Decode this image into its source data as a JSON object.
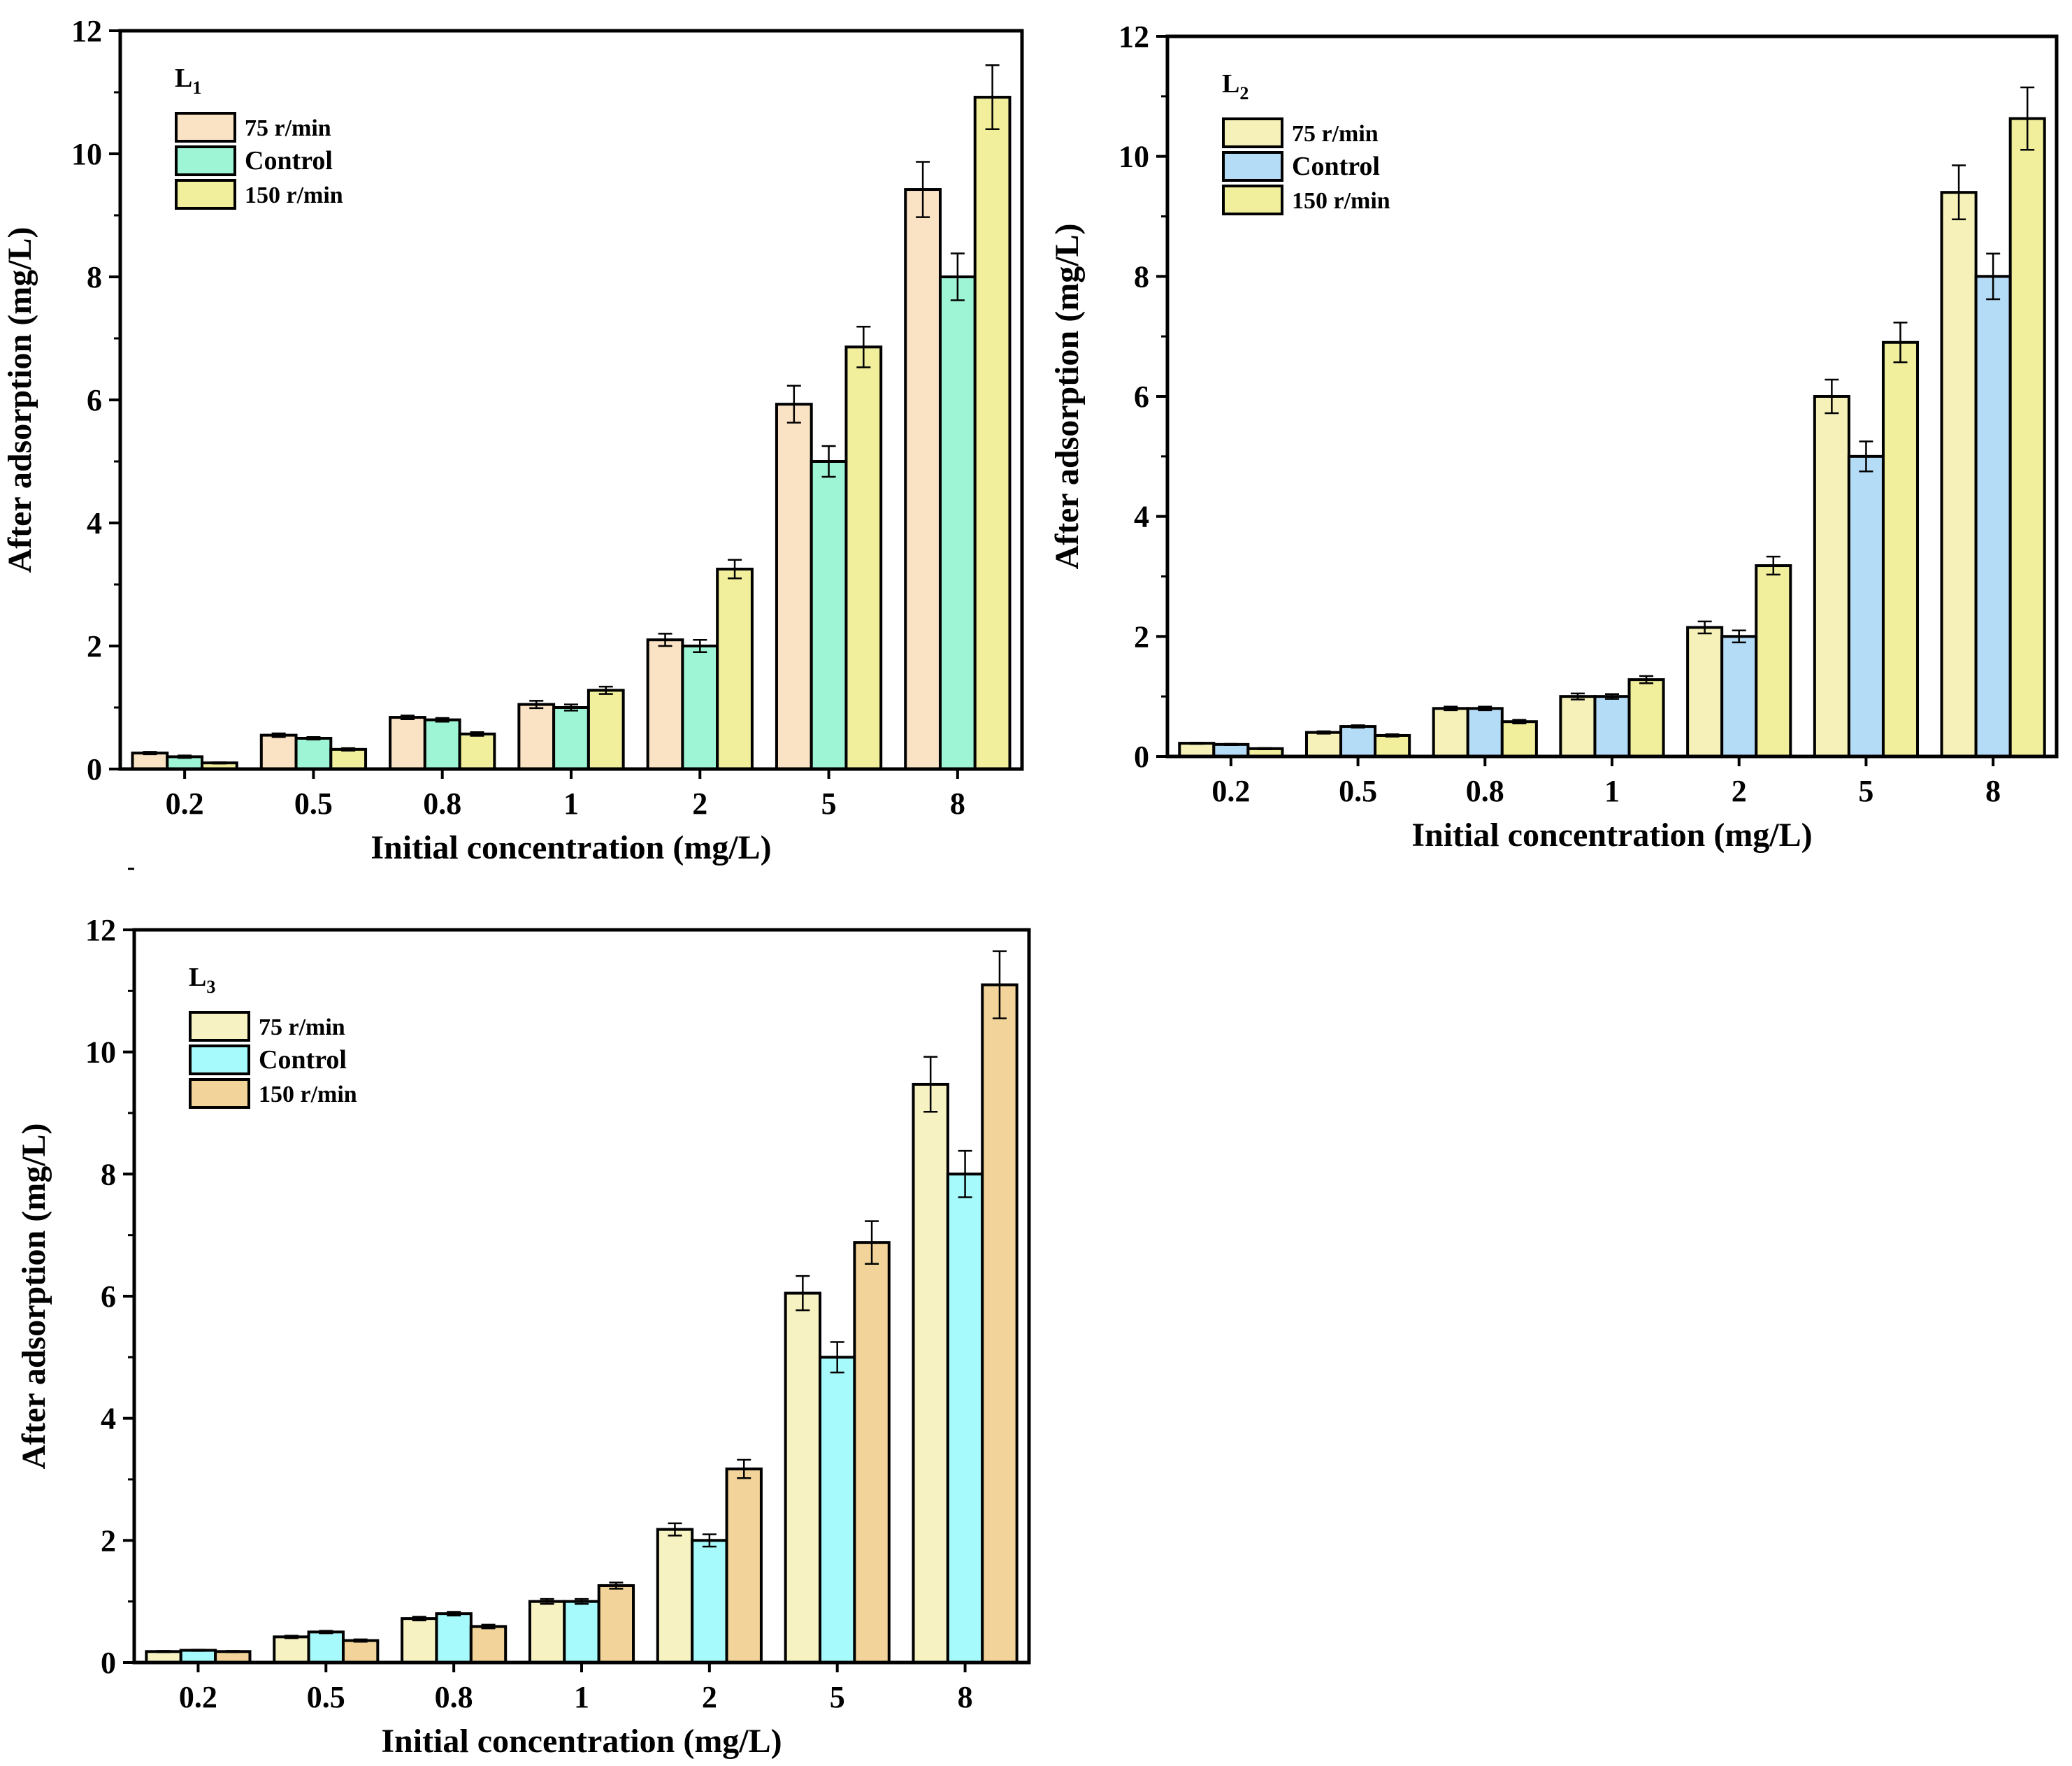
{
  "chart_data": [
    {
      "type": "bar",
      "panel_label": "L",
      "panel_subscript": "1",
      "xlabel": "Initial concentration (mg/L)",
      "ylabel": "After adsorption (mg/L)",
      "ylim": [
        0,
        12
      ],
      "yticks": [
        "0",
        "2",
        "4",
        "6",
        "8",
        "10",
        "12"
      ],
      "categories": [
        "0.2",
        "0.5",
        "0.8",
        "1",
        "2",
        "5",
        "8"
      ],
      "legend_position": "top-left",
      "series": [
        {
          "name": "75 r/min",
          "color": "#fae3c5",
          "values": [
            0.26,
            0.55,
            0.84,
            1.05,
            2.1,
            5.93,
            9.42
          ],
          "errors": [
            0.02,
            0.03,
            0.03,
            0.06,
            0.1,
            0.3,
            0.45
          ]
        },
        {
          "name": "Control",
          "color": "#9ef5d5",
          "values": [
            0.2,
            0.5,
            0.8,
            1.0,
            2.0,
            5.0,
            8.0
          ],
          "errors": [
            0.02,
            0.02,
            0.03,
            0.05,
            0.1,
            0.25,
            0.38
          ]
        },
        {
          "name": "150 r/min",
          "color": "#f2ef9c",
          "values": [
            0.1,
            0.32,
            0.57,
            1.28,
            3.25,
            6.86,
            10.92
          ],
          "errors": [
            0.01,
            0.02,
            0.03,
            0.06,
            0.15,
            0.33,
            0.52
          ]
        }
      ]
    },
    {
      "type": "bar",
      "panel_label": "L",
      "panel_subscript": "2",
      "xlabel": "Initial concentration (mg/L)",
      "ylabel": "After adsorption (mg/L)",
      "ylim": [
        0,
        12
      ],
      "yticks": [
        "0",
        "2",
        "4",
        "6",
        "8",
        "10",
        "12"
      ],
      "categories": [
        "0.2",
        "0.5",
        "0.8",
        "1",
        "2",
        "5",
        "8"
      ],
      "legend_position": "top-left",
      "series": [
        {
          "name": "75 r/min",
          "color": "#f5f1b8",
          "values": [
            0.22,
            0.4,
            0.8,
            1.0,
            2.15,
            6.0,
            9.4
          ],
          "errors": [
            0.01,
            0.02,
            0.03,
            0.05,
            0.1,
            0.28,
            0.45
          ]
        },
        {
          "name": "Control",
          "color": "#b5dcf7",
          "values": [
            0.2,
            0.5,
            0.8,
            1.0,
            2.0,
            5.0,
            8.0
          ],
          "errors": [
            0.01,
            0.02,
            0.03,
            0.04,
            0.1,
            0.25,
            0.38
          ]
        },
        {
          "name": "150 r/min",
          "color": "#f2ef9c",
          "values": [
            0.13,
            0.35,
            0.58,
            1.28,
            3.18,
            6.9,
            10.63
          ],
          "errors": [
            0.01,
            0.02,
            0.03,
            0.06,
            0.15,
            0.33,
            0.52
          ]
        }
      ]
    },
    {
      "type": "bar",
      "panel_label": "L",
      "panel_subscript": "3",
      "xlabel": "Initial concentration (mg/L)",
      "ylabel": "After adsorption (mg/L)",
      "ylim": [
        0,
        12
      ],
      "yticks": [
        "0",
        "2",
        "4",
        "6",
        "8",
        "10",
        "12"
      ],
      "categories": [
        "0.2",
        "0.5",
        "0.8",
        "1",
        "2",
        "5",
        "8"
      ],
      "legend_position": "top-left",
      "series": [
        {
          "name": "75 r/min",
          "color": "#f6f2c2",
          "values": [
            0.18,
            0.42,
            0.72,
            1.0,
            2.18,
            6.05,
            9.47
          ],
          "errors": [
            0.01,
            0.02,
            0.03,
            0.04,
            0.1,
            0.28,
            0.45
          ]
        },
        {
          "name": "Control",
          "color": "#a6fafc",
          "values": [
            0.2,
            0.5,
            0.8,
            1.0,
            2.0,
            5.0,
            8.0
          ],
          "errors": [
            0.01,
            0.02,
            0.03,
            0.04,
            0.1,
            0.25,
            0.38
          ]
        },
        {
          "name": "150 r/min",
          "color": "#f2d49a",
          "values": [
            0.18,
            0.36,
            0.59,
            1.26,
            3.17,
            6.88,
            11.1
          ],
          "errors": [
            0.01,
            0.02,
            0.03,
            0.05,
            0.15,
            0.35,
            0.55
          ]
        }
      ]
    }
  ]
}
